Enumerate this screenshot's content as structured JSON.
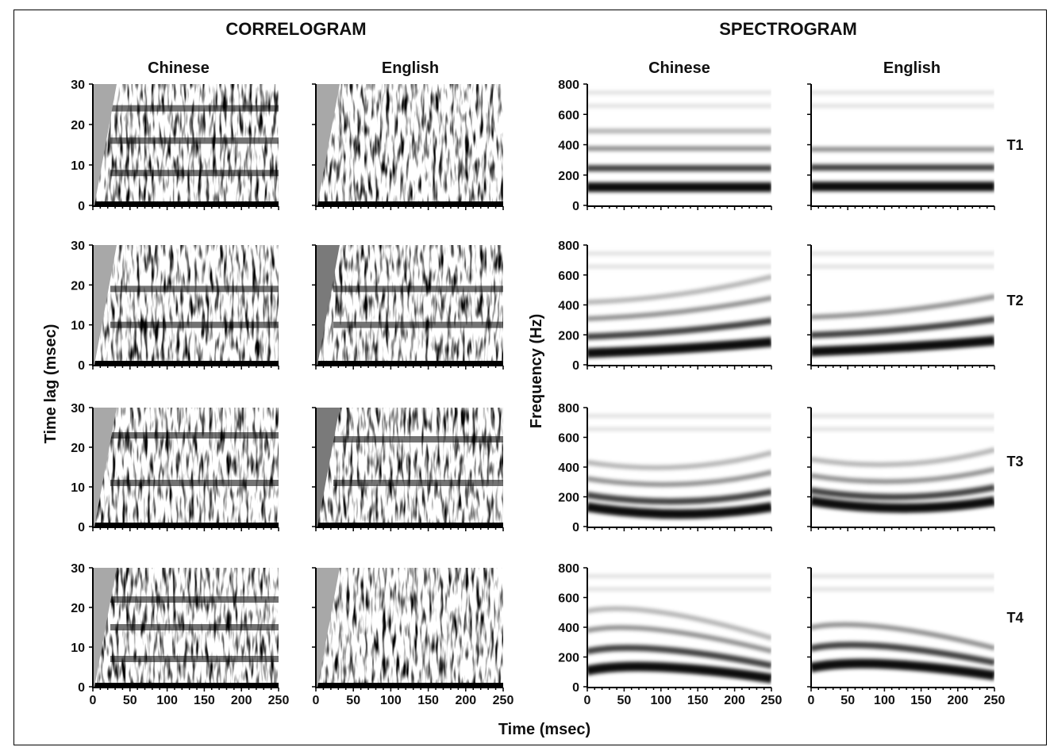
{
  "figure": {
    "sections": {
      "correlogram": "CORRELOGRAM",
      "spectrogram": "SPECTROGRAM"
    },
    "columns": {
      "left": "Chinese",
      "right": "English"
    },
    "axes": {
      "correlogram_ylabel": "Time lag (msec)",
      "spectrogram_ylabel": "Frequency (Hz)",
      "xlabel": "Time (msec)",
      "correlogram_yticks": [
        "0",
        "10",
        "20",
        "30"
      ],
      "spectrogram_yticks": [
        "0",
        "200",
        "400",
        "600",
        "800"
      ],
      "xticks": [
        "0",
        "50",
        "100",
        "150",
        "200",
        "250"
      ]
    },
    "rows": [
      "T1",
      "T2",
      "T3",
      "T4"
    ]
  },
  "chart_data": {
    "type": "heatmap",
    "xlabel": "Time (msec)",
    "xlim": [
      0,
      250
    ],
    "panels": [
      {
        "section": "CORRELOGRAM",
        "language": "Chinese",
        "tone": "T1",
        "ylim": [
          0,
          30
        ],
        "ylabel": "Time lag (msec)",
        "dark_bands_lag_ms": [
          8,
          16,
          24
        ]
      },
      {
        "section": "CORRELOGRAM",
        "language": "English",
        "tone": "T1",
        "ylim": [
          0,
          30
        ],
        "ylabel": "Time lag (msec)",
        "dark_bands_lag_ms": []
      },
      {
        "section": "CORRELOGRAM",
        "language": "Chinese",
        "tone": "T2",
        "ylim": [
          0,
          30
        ],
        "ylabel": "Time lag (msec)",
        "dark_bands_lag_ms": [
          10,
          19
        ]
      },
      {
        "section": "CORRELOGRAM",
        "language": "English",
        "tone": "T2",
        "ylim": [
          0,
          30
        ],
        "ylabel": "Time lag (msec)",
        "dark_bands_lag_ms": [
          10,
          19
        ]
      },
      {
        "section": "CORRELOGRAM",
        "language": "Chinese",
        "tone": "T3",
        "ylim": [
          0,
          30
        ],
        "ylabel": "Time lag (msec)",
        "dark_bands_lag_ms": [
          11,
          23
        ]
      },
      {
        "section": "CORRELOGRAM",
        "language": "English",
        "tone": "T3",
        "ylim": [
          0,
          30
        ],
        "ylabel": "Time lag (msec)",
        "dark_bands_lag_ms": [
          11,
          22
        ]
      },
      {
        "section": "CORRELOGRAM",
        "language": "Chinese",
        "tone": "T4",
        "ylim": [
          0,
          30
        ],
        "ylabel": "Time lag (msec)",
        "dark_bands_lag_ms": [
          7,
          15,
          22
        ]
      },
      {
        "section": "CORRELOGRAM",
        "language": "English",
        "tone": "T4",
        "ylim": [
          0,
          30
        ],
        "ylabel": "Time lag (msec)",
        "dark_bands_lag_ms": []
      },
      {
        "section": "SPECTROGRAM",
        "language": "Chinese",
        "tone": "T1",
        "ylim": [
          0,
          800
        ],
        "ylabel": "Frequency (Hz)",
        "dark_bands_hz": [
          120,
          245,
          375,
          490
        ]
      },
      {
        "section": "SPECTROGRAM",
        "language": "English",
        "tone": "T1",
        "ylim": [
          0,
          800
        ],
        "ylabel": "Frequency (Hz)",
        "dark_bands_hz": [
          125,
          250,
          370
        ]
      },
      {
        "section": "SPECTROGRAM",
        "language": "Chinese",
        "tone": "T2",
        "ylim": [
          0,
          800
        ],
        "ylabel": "Frequency (Hz)",
        "dark_bands_hz": [
          110,
          220,
          340,
          450
        ]
      },
      {
        "section": "SPECTROGRAM",
        "language": "English",
        "tone": "T2",
        "ylim": [
          0,
          800
        ],
        "ylabel": "Frequency (Hz)",
        "dark_bands_hz": [
          120,
          230,
          350
        ]
      },
      {
        "section": "SPECTROGRAM",
        "language": "Chinese",
        "tone": "T3",
        "ylim": [
          0,
          800
        ],
        "ylabel": "Frequency (Hz)",
        "dark_bands_hz": [
          100,
          180,
          290,
          400
        ]
      },
      {
        "section": "SPECTROGRAM",
        "language": "English",
        "tone": "T3",
        "ylim": [
          0,
          800
        ],
        "ylabel": "Frequency (Hz)",
        "dark_bands_hz": [
          140,
          210,
          310,
          420
        ]
      },
      {
        "section": "SPECTROGRAM",
        "language": "Chinese",
        "tone": "T4",
        "ylim": [
          0,
          800
        ],
        "ylabel": "Frequency (Hz)",
        "dark_bands_hz": [
          130,
          260,
          400,
          530
        ]
      },
      {
        "section": "SPECTROGRAM",
        "language": "English",
        "tone": "T4",
        "ylim": [
          0,
          800
        ],
        "ylabel": "Frequency (Hz)",
        "dark_bands_hz": [
          150,
          280,
          420
        ]
      }
    ]
  },
  "colors": {
    "ink": "#111111",
    "onset_wedge": "#a8a8a8",
    "onset_wedge_dark": "#7a7a7a",
    "background": "#ffffff"
  }
}
